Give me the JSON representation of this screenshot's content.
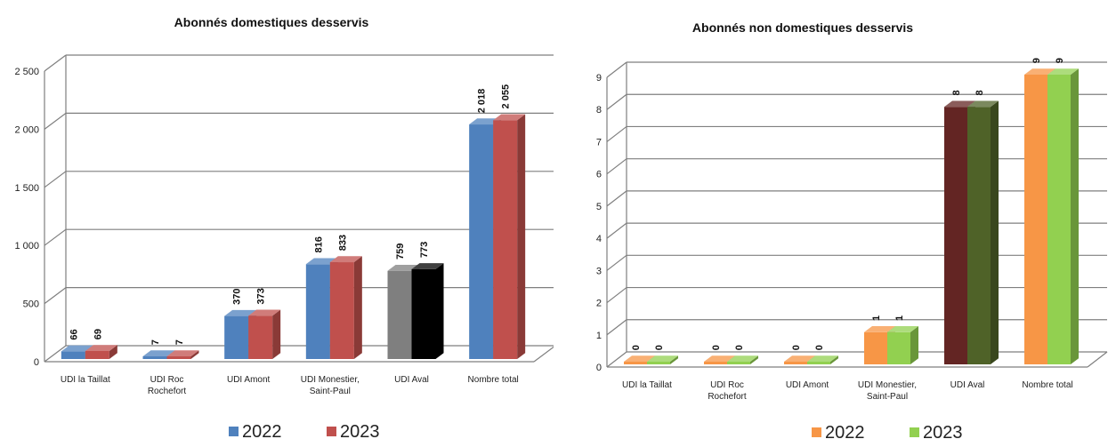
{
  "chart_data": [
    {
      "type": "bar",
      "title": "Abonnés domestiques desservis",
      "categories": [
        "UDI la Taillat",
        "UDI Roc Rochefort",
        "UDI Amont",
        "UDI Monestier, Saint-Paul",
        "UDI Aval",
        "Nombre total"
      ],
      "category_lines": [
        [
          "UDI la Taillat"
        ],
        [
          "UDI Roc",
          "Rochefort"
        ],
        [
          "UDI Amont"
        ],
        [
          "UDI Monestier,",
          "Saint-Paul"
        ],
        [
          "UDI Aval"
        ],
        [
          "Nombre total"
        ]
      ],
      "series": [
        {
          "name": "2022",
          "values": [
            66,
            7,
            370,
            816,
            759,
            2018
          ],
          "labels": [
            "66",
            "7",
            "370",
            "816",
            "759",
            "2 018"
          ]
        },
        {
          "name": "2023",
          "values": [
            69,
            7,
            373,
            833,
            773,
            2055
          ],
          "labels": [
            "69",
            "7",
            "373",
            "833",
            "773",
            "2 055"
          ]
        }
      ],
      "ylim": [
        0,
        2500
      ],
      "yticks": [
        0,
        500,
        1000,
        1500,
        2000,
        2500
      ],
      "ytick_labels": [
        "0",
        "500",
        "1 000",
        "1 500",
        "2 000",
        "2 500"
      ],
      "grid": true,
      "legend_position": "bottom",
      "colors": {
        "2022": "#4f81bd",
        "2023": "#c0504d",
        "aval_2022": "#7f7f7f",
        "aval_2023": "#000000"
      }
    },
    {
      "type": "bar",
      "title": "Abonnés non domestiques desservis",
      "categories": [
        "UDI la Taillat",
        "UDI Roc Rochefort",
        "UDI Amont",
        "UDI Monestier, Saint-Paul",
        "UDI Aval",
        "Nombre total"
      ],
      "category_lines": [
        [
          "UDI la Taillat"
        ],
        [
          "UDI Roc",
          "Rochefort"
        ],
        [
          "UDI Amont"
        ],
        [
          "UDI Monestier,",
          "Saint-Paul"
        ],
        [
          "UDI Aval"
        ],
        [
          "Nombre total"
        ]
      ],
      "series": [
        {
          "name": "2022",
          "values": [
            0,
            0,
            0,
            1,
            8,
            9
          ],
          "labels": [
            "0",
            "0",
            "0",
            "1",
            "8",
            "9"
          ]
        },
        {
          "name": "2023",
          "values": [
            0,
            0,
            0,
            1,
            8,
            9
          ],
          "labels": [
            "0",
            "0",
            "0",
            "1",
            "8",
            "9"
          ]
        }
      ],
      "ylim": [
        0,
        9
      ],
      "yticks": [
        0,
        1,
        2,
        3,
        4,
        5,
        6,
        7,
        8,
        9
      ],
      "ytick_labels": [
        "0",
        "1",
        "2",
        "3",
        "4",
        "5",
        "6",
        "7",
        "8",
        "9"
      ],
      "grid": true,
      "legend_position": "bottom",
      "colors": {
        "2022": "#f79646",
        "2023": "#92d050",
        "aval_2022": "#632523",
        "aval_2023": "#4f6228"
      }
    }
  ]
}
